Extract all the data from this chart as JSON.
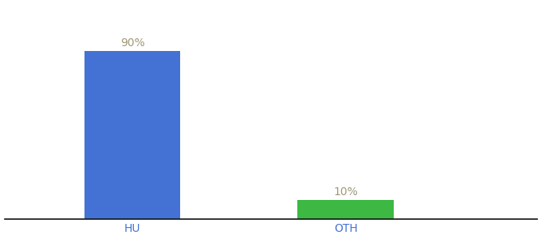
{
  "categories": [
    "HU",
    "OTH"
  ],
  "values": [
    90,
    10
  ],
  "bar_colors": [
    "#4472d4",
    "#3cb843"
  ],
  "label_texts": [
    "90%",
    "10%"
  ],
  "ylim": [
    0,
    115
  ],
  "background_color": "#ffffff",
  "label_color": "#a09878",
  "label_fontsize": 10,
  "tick_color": "#4472d4",
  "tick_fontsize": 10,
  "bar_width": 0.45
}
